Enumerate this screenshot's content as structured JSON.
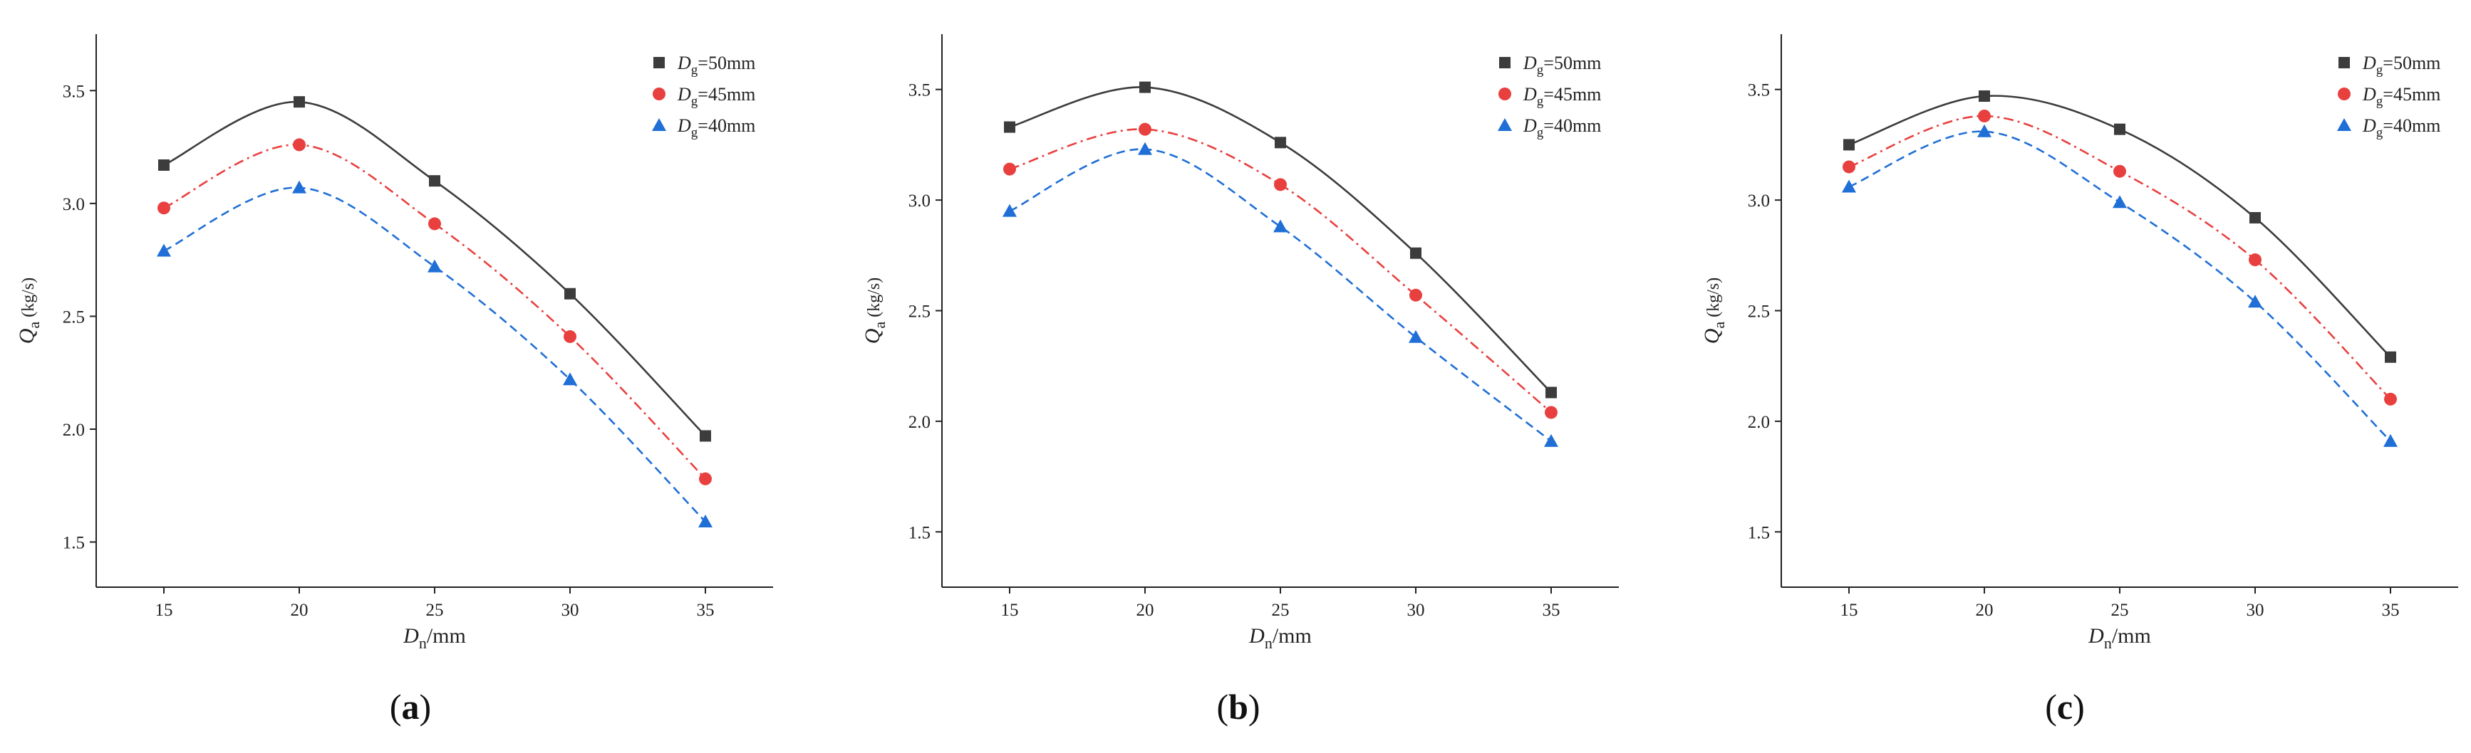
{
  "chart_data": [
    {
      "type": "line",
      "panel_label": "a",
      "xlabel_main": "D",
      "xlabel_sub": "n",
      "xlabel_unit": "/mm",
      "ylabel_main": "Q",
      "ylabel_sub": "a",
      "ylabel_unit": " (kg/s)",
      "xlim": [
        12.5,
        37.5
      ],
      "ylim": [
        1.3,
        3.75
      ],
      "xticks": [
        15,
        20,
        25,
        30,
        35
      ],
      "xtick_labels": [
        "15",
        "20",
        "25",
        "30",
        "35"
      ],
      "yticks": [
        1.5,
        2.0,
        2.5,
        3.0,
        3.5
      ],
      "ytick_labels": [
        "1.5",
        "2.0",
        "2.5",
        "3.0",
        "3.5"
      ],
      "x": [
        15,
        20,
        25,
        30,
        35
      ],
      "legend_position": "top-right",
      "series": [
        {
          "name_main": "D",
          "name_sub": "g",
          "name_rest": "=50mm",
          "color": "#3c3c3c",
          "marker": "square",
          "line_style": "solid",
          "values": [
            3.17,
            3.45,
            3.1,
            2.6,
            1.97
          ]
        },
        {
          "name_main": "D",
          "name_sub": "g",
          "name_rest": "=45mm",
          "color": "#e8403f",
          "marker": "circle",
          "line_style": "dash-dot",
          "values": [
            2.98,
            3.26,
            2.91,
            2.41,
            1.78
          ]
        },
        {
          "name_main": "D",
          "name_sub": "g",
          "name_rest": "=40mm",
          "color": "#1f6fd6",
          "marker": "triangle",
          "line_style": "dashed",
          "values": [
            2.79,
            3.07,
            2.72,
            2.22,
            1.59
          ]
        }
      ]
    },
    {
      "type": "line",
      "panel_label": "b",
      "xlabel_main": "D",
      "xlabel_sub": "n",
      "xlabel_unit": "/mm",
      "ylabel_main": "Q",
      "ylabel_sub": "a",
      "ylabel_unit": " (kg/s)",
      "xlim": [
        12.5,
        37.5
      ],
      "ylim": [
        1.25,
        3.75
      ],
      "xticks": [
        15,
        20,
        25,
        30,
        35
      ],
      "xtick_labels": [
        "15",
        "20",
        "25",
        "30",
        "35"
      ],
      "yticks": [
        1.5,
        2.0,
        2.5,
        3.0,
        3.5
      ],
      "ytick_labels": [
        "1.5",
        "2.0",
        "2.5",
        "3.0",
        "3.5"
      ],
      "x": [
        15,
        20,
        25,
        30,
        35
      ],
      "legend_position": "top-right",
      "series": [
        {
          "name_main": "D",
          "name_sub": "g",
          "name_rest": "=50mm",
          "color": "#3c3c3c",
          "marker": "square",
          "line_style": "solid",
          "values": [
            3.33,
            3.51,
            3.26,
            2.76,
            2.13
          ]
        },
        {
          "name_main": "D",
          "name_sub": "g",
          "name_rest": "=45mm",
          "color": "#e8403f",
          "marker": "circle",
          "line_style": "dash-dot",
          "values": [
            3.14,
            3.32,
            3.07,
            2.57,
            2.04
          ]
        },
        {
          "name_main": "D",
          "name_sub": "g",
          "name_rest": "=40mm",
          "color": "#1f6fd6",
          "marker": "triangle",
          "line_style": "dashed",
          "values": [
            2.95,
            3.23,
            2.88,
            2.38,
            1.91
          ]
        }
      ]
    },
    {
      "type": "line",
      "panel_label": "c",
      "xlabel_main": "D",
      "xlabel_sub": "n",
      "xlabel_unit": "/mm",
      "ylabel_main": "Q",
      "ylabel_sub": "a",
      "ylabel_unit": " (kg/s)",
      "xlim": [
        12.5,
        37.5
      ],
      "ylim": [
        1.25,
        3.75
      ],
      "xticks": [
        15,
        20,
        25,
        30,
        35
      ],
      "xtick_labels": [
        "15",
        "20",
        "25",
        "30",
        "35"
      ],
      "yticks": [
        1.5,
        2.0,
        2.5,
        3.0,
        3.5
      ],
      "ytick_labels": [
        "1.5",
        "2.0",
        "2.5",
        "3.0",
        "3.5"
      ],
      "x": [
        15,
        20,
        25,
        30,
        35
      ],
      "legend_position": "top-right",
      "series": [
        {
          "name_main": "D",
          "name_sub": "g",
          "name_rest": "=50mm",
          "color": "#3c3c3c",
          "marker": "square",
          "line_style": "solid",
          "values": [
            3.25,
            3.47,
            3.32,
            2.92,
            2.29
          ]
        },
        {
          "name_main": "D",
          "name_sub": "g",
          "name_rest": "=45mm",
          "color": "#e8403f",
          "marker": "circle",
          "line_style": "dash-dot",
          "values": [
            3.15,
            3.38,
            3.13,
            2.73,
            2.1
          ]
        },
        {
          "name_main": "D",
          "name_sub": "g",
          "name_rest": "=40mm",
          "color": "#1f6fd6",
          "marker": "triangle",
          "line_style": "dashed",
          "values": [
            3.06,
            3.31,
            2.99,
            2.54,
            1.91
          ]
        }
      ]
    }
  ]
}
